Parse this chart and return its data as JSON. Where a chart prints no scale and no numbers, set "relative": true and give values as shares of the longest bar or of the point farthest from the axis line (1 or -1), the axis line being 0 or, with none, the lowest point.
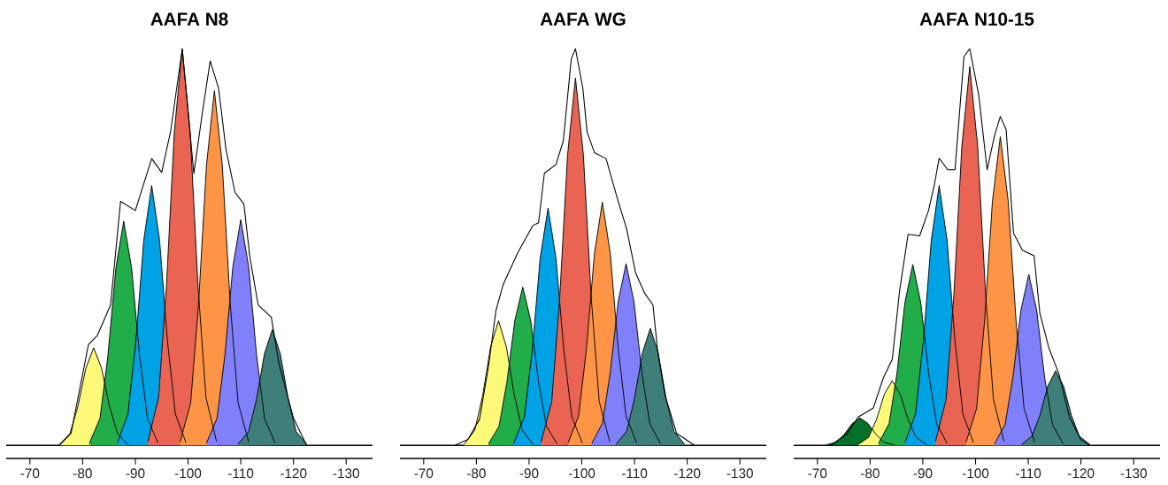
{
  "chart_data": [
    {
      "type": "area",
      "title": "AAFA N8",
      "relative": true,
      "tick_labels": "x",
      "xlim": [
        -65.5,
        -135
      ],
      "xticks": [
        -70,
        -80,
        -90,
        -100,
        -110,
        -120,
        -130
      ],
      "series": [
        {
          "type": "area",
          "color": "#fff97a",
          "x": [
            -75.6,
            -77.6,
            -79.1,
            -80.6,
            -82.1,
            -83.6,
            -85.1,
            -86.6,
            -88.6
          ],
          "values": [
            0.002,
            0.03,
            0.098,
            0.194,
            0.246,
            0.194,
            0.098,
            0.03,
            0.002
          ]
        },
        {
          "type": "area",
          "color": "#22ad4b",
          "x": [
            -81.3,
            -83.3,
            -84.8,
            -86.3,
            -87.8,
            -89.3,
            -90.8,
            -92.3,
            -94.3
          ],
          "values": [
            0.006,
            0.068,
            0.226,
            0.446,
            0.565,
            0.446,
            0.226,
            0.068,
            0.006
          ]
        },
        {
          "type": "area",
          "color": "#00a2e6",
          "x": [
            -86.6,
            -88.6,
            -90.1,
            -91.6,
            -93.1,
            -94.6,
            -96.1,
            -97.6,
            -99.6
          ],
          "values": [
            0.007,
            0.079,
            0.262,
            0.517,
            0.655,
            0.517,
            0.262,
            0.079,
            0.007
          ]
        },
        {
          "type": "area",
          "color": "#ea6453",
          "x": [
            -92.4,
            -94.4,
            -95.9,
            -97.4,
            -98.9,
            -100.4,
            -101.9,
            -103.4,
            -105.4
          ],
          "values": [
            0.01,
            0.12,
            0.4,
            0.79,
            1.0,
            0.79,
            0.4,
            0.12,
            0.01
          ]
        },
        {
          "type": "area",
          "color": "#fd9446",
          "x": [
            -98.5,
            -100.5,
            -102,
            -103.5,
            -105,
            -106.5,
            -108,
            -109.5,
            -111.5
          ],
          "values": [
            0.009,
            0.107,
            0.358,
            0.706,
            0.894,
            0.706,
            0.358,
            0.107,
            0.009
          ]
        },
        {
          "type": "area",
          "color": "#8080fb",
          "x": [
            -103.5,
            -105.5,
            -107,
            -108.5,
            -110,
            -111.5,
            -113,
            -114.5,
            -116.5
          ],
          "values": [
            0.006,
            0.068,
            0.228,
            0.45,
            0.569,
            0.45,
            0.228,
            0.068,
            0.006
          ]
        },
        {
          "type": "area",
          "color": "#3f7f7a",
          "x": [
            -109.5,
            -111.5,
            -113,
            -114.5,
            -116,
            -117.5,
            -119,
            -120.5,
            -122.5
          ],
          "values": [
            0.003,
            0.035,
            0.117,
            0.231,
            0.292,
            0.231,
            0.117,
            0.035,
            0.003
          ]
        },
        {
          "type": "line",
          "color": "#000000",
          "x": [
            -75.6,
            -77.8,
            -81.1,
            -82.8,
            -85.3,
            -87.2,
            -90,
            -93.1,
            -95,
            -96.7,
            -98.9,
            -101.1,
            -102.8,
            -104.2,
            -105.8,
            -107.2,
            -108.9,
            -110.6,
            -111.7,
            -113.3,
            -115.8,
            -117.2,
            -120,
            -122.5
          ],
          "values": [
            0,
            0.03,
            0.254,
            0.277,
            0.354,
            0.615,
            0.592,
            0.723,
            0.688,
            0.792,
            1.0,
            0.685,
            0.846,
            0.969,
            0.9,
            0.746,
            0.638,
            0.608,
            0.477,
            0.354,
            0.323,
            0.208,
            0.069,
            0
          ]
        }
      ]
    },
    {
      "type": "area",
      "title": "AAFA WG",
      "relative": true,
      "tick_labels": "x",
      "xlim": [
        -65.5,
        -135
      ],
      "xticks": [
        -70,
        -80,
        -90,
        -100,
        -110,
        -120,
        -130
      ],
      "series": [
        {
          "type": "area",
          "color": "#fff97a",
          "x": [
            -77.7,
            -79.7,
            -81.2,
            -82.7,
            -84.2,
            -85.7,
            -87.2,
            -88.7,
            -90.7
          ],
          "values": [
            0.003,
            0.038,
            0.126,
            0.248,
            0.314,
            0.248,
            0.126,
            0.038,
            0.003
          ]
        },
        {
          "type": "area",
          "color": "#22ad4b",
          "x": [
            -82.3,
            -84.3,
            -85.8,
            -87.3,
            -88.8,
            -90.3,
            -91.8,
            -93.3,
            -95.3
          ],
          "values": [
            0.004,
            0.048,
            0.16,
            0.315,
            0.399,
            0.315,
            0.16,
            0.048,
            0.004
          ]
        },
        {
          "type": "area",
          "color": "#00a2e6",
          "x": [
            -87.1,
            -89.1,
            -90.6,
            -92.1,
            -93.6,
            -95.1,
            -96.6,
            -98.1,
            -100.1
          ],
          "values": [
            0.006,
            0.072,
            0.239,
            0.472,
            0.598,
            0.472,
            0.239,
            0.072,
            0.006
          ]
        },
        {
          "type": "area",
          "color": "#ea6453",
          "x": [
            -92.3,
            -94.3,
            -95.8,
            -97.3,
            -98.8,
            -100.3,
            -101.8,
            -103.3,
            -105.3
          ],
          "values": [
            0.009,
            0.111,
            0.37,
            0.732,
            0.926,
            0.732,
            0.37,
            0.111,
            0.009
          ]
        },
        {
          "type": "area",
          "color": "#fd9446",
          "x": [
            -97.4,
            -99.4,
            -100.9,
            -102.4,
            -103.9,
            -105.4,
            -106.9,
            -108.4,
            -110.4
          ],
          "values": [
            0.006,
            0.074,
            0.245,
            0.484,
            0.613,
            0.484,
            0.245,
            0.074,
            0.006
          ]
        },
        {
          "type": "area",
          "color": "#8080fb",
          "x": [
            -101.9,
            -103.9,
            -105.4,
            -106.9,
            -108.4,
            -109.9,
            -111.4,
            -112.9,
            -114.9
          ],
          "values": [
            0.005,
            0.055,
            0.183,
            0.362,
            0.458,
            0.362,
            0.183,
            0.055,
            0.005
          ]
        },
        {
          "type": "area",
          "color": "#3f7f7a",
          "x": [
            -106.5,
            -108.5,
            -110,
            -111.5,
            -113,
            -114.5,
            -116,
            -117.5,
            -119.5
          ],
          "values": [
            0.003,
            0.035,
            0.118,
            0.233,
            0.295,
            0.233,
            0.118,
            0.035,
            0.003
          ]
        },
        {
          "type": "line",
          "color": "#000000",
          "x": [
            -75.9,
            -78.4,
            -80.6,
            -82.3,
            -83.7,
            -85.1,
            -87.9,
            -90.7,
            -91.8,
            -92.9,
            -95.1,
            -96.5,
            -98,
            -98.8,
            -100.2,
            -101,
            -102.4,
            -104.6,
            -106.8,
            -108.5,
            -110.2,
            -111.9,
            -113.5,
            -114.4,
            -115.8,
            -118,
            -121.4
          ],
          "values": [
            0,
            0.015,
            0.066,
            0.199,
            0.339,
            0.406,
            0.487,
            0.554,
            0.561,
            0.686,
            0.708,
            0.768,
            0.974,
            1.0,
            0.9,
            0.79,
            0.738,
            0.723,
            0.62,
            0.546,
            0.435,
            0.384,
            0.354,
            0.236,
            0.125,
            0.03,
            0
          ]
        }
      ]
    },
    {
      "type": "area",
      "title": "AAFA N10-15",
      "relative": true,
      "tick_labels": "x",
      "xlim": [
        -65.5,
        -135
      ],
      "xticks": [
        -70,
        -80,
        -90,
        -100,
        -110,
        -120,
        -130
      ],
      "series": [
        {
          "type": "area",
          "color": "#05702a",
          "x": [
            -71.6,
            -73.6,
            -75.1,
            -76.6,
            -78.1,
            -79.6,
            -81.1,
            -82.6,
            -84.6
          ],
          "values": [
            0.001,
            0.008,
            0.028,
            0.055,
            0.069,
            0.055,
            0.028,
            0.008,
            0.001
          ]
        },
        {
          "type": "area",
          "color": "#fff97a",
          "x": [
            -77.7,
            -79.7,
            -81.2,
            -82.7,
            -84.2,
            -85.7,
            -87.2,
            -88.7,
            -90.7
          ],
          "values": [
            0.002,
            0.02,
            0.065,
            0.129,
            0.163,
            0.129,
            0.065,
            0.02,
            0.002
          ]
        },
        {
          "type": "area",
          "color": "#22ad4b",
          "x": [
            -81.6,
            -83.6,
            -85.1,
            -86.6,
            -88.1,
            -89.6,
            -91.1,
            -92.6,
            -94.6
          ],
          "values": [
            0.005,
            0.055,
            0.182,
            0.36,
            0.456,
            0.36,
            0.182,
            0.055,
            0.005
          ]
        },
        {
          "type": "area",
          "color": "#00a2e6",
          "x": [
            -86.6,
            -88.6,
            -90.1,
            -91.6,
            -93.1,
            -94.6,
            -96.1,
            -97.6,
            -99.6
          ],
          "values": [
            0.007,
            0.079,
            0.262,
            0.517,
            0.655,
            0.517,
            0.262,
            0.079,
            0.007
          ]
        },
        {
          "type": "area",
          "color": "#ea6453",
          "x": [
            -92.4,
            -94.4,
            -95.9,
            -97.4,
            -98.9,
            -100.4,
            -101.9,
            -103.4,
            -105.4
          ],
          "values": [
            0.01,
            0.115,
            0.382,
            0.754,
            0.955,
            0.754,
            0.382,
            0.115,
            0.01
          ]
        },
        {
          "type": "area",
          "color": "#fd9446",
          "x": [
            -98.2,
            -100.2,
            -101.7,
            -103.2,
            -104.7,
            -106.2,
            -107.7,
            -109.2,
            -111.2
          ],
          "values": [
            0.008,
            0.093,
            0.311,
            0.615,
            0.778,
            0.615,
            0.311,
            0.093,
            0.008
          ]
        },
        {
          "type": "area",
          "color": "#8080fb",
          "x": [
            -103.6,
            -105.6,
            -107.1,
            -108.6,
            -110.1,
            -111.6,
            -113.1,
            -114.6,
            -116.6
          ],
          "values": [
            0.004,
            0.052,
            0.172,
            0.34,
            0.431,
            0.34,
            0.172,
            0.052,
            0.004
          ]
        },
        {
          "type": "area",
          "color": "#3f7f7a",
          "x": [
            -108.7,
            -110.7,
            -112.2,
            -113.7,
            -115.2,
            -116.7,
            -118.2,
            -119.7,
            -121.7
          ],
          "values": [
            0.002,
            0.023,
            0.075,
            0.149,
            0.188,
            0.149,
            0.075,
            0.023,
            0.002
          ]
        },
        {
          "type": "line",
          "color": "#000000",
          "x": [
            -72.5,
            -75.6,
            -77.8,
            -80.6,
            -82.5,
            -84.2,
            -85.6,
            -87.2,
            -89.4,
            -91.1,
            -92.2,
            -93.1,
            -94.7,
            -96.1,
            -97.8,
            -98.9,
            -100.6,
            -102.2,
            -103.6,
            -104.7,
            -105.8,
            -107.2,
            -108.9,
            -111.1,
            -112.2,
            -113.9,
            -115.8,
            -117.8,
            -120,
            -121.7
          ],
          "values": [
            0,
            0.029,
            0.072,
            0.094,
            0.17,
            0.217,
            0.391,
            0.532,
            0.528,
            0.593,
            0.658,
            0.724,
            0.695,
            0.695,
            0.98,
            1.0,
            0.883,
            0.695,
            0.781,
            0.829,
            0.796,
            0.535,
            0.492,
            0.478,
            0.333,
            0.246,
            0.181,
            0.072,
            0.014,
            0
          ]
        }
      ]
    }
  ]
}
